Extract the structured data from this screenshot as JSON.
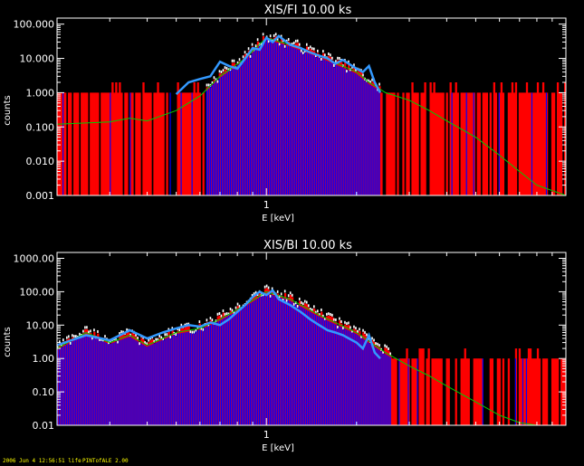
{
  "footer": {
    "timestamp": "2006 Jun  4 12:56:51 life",
    "software": "PINTofALE 2.00"
  },
  "colors": {
    "background": "#000000",
    "axes": "#ffffff",
    "observed": "#ffffff",
    "model_bins": "#0000ff",
    "residual_bins": "#ff0000",
    "smoothed_model": "#3399ff",
    "continuum": "#00cc00"
  },
  "chart_data": [
    {
      "type": "bar",
      "title": "XIS/FI 10.00 ks",
      "xlabel": "E [keV]",
      "ylabel": "counts",
      "xscale": "log",
      "yscale": "log",
      "xlim": [
        0.2,
        10
      ],
      "ylim": [
        0.001,
        150
      ],
      "xticks": [
        {
          "value": 1,
          "label": "1"
        }
      ],
      "yticks": [
        {
          "value": 0.001,
          "label": "0.001"
        },
        {
          "value": 0.01,
          "label": "0.010"
        },
        {
          "value": 0.1,
          "label": "0.100"
        },
        {
          "value": 1,
          "label": "1.000"
        },
        {
          "value": 10,
          "label": "10.000"
        },
        {
          "value": 100,
          "label": "100.000"
        }
      ],
      "grid": false,
      "continuum": {
        "x": [
          0.2,
          0.3,
          0.35,
          0.4,
          0.5,
          0.6,
          0.7,
          0.85,
          1.0,
          1.2,
          1.5,
          2.0,
          2.2,
          2.5,
          3,
          3.5,
          4,
          5,
          6,
          7,
          8,
          10
        ],
        "y": [
          0.12,
          0.14,
          0.18,
          0.15,
          0.3,
          0.8,
          3,
          10,
          40,
          25,
          12,
          4,
          2,
          1.0,
          0.6,
          0.3,
          0.15,
          0.05,
          0.015,
          0.005,
          0.002,
          0.001
        ]
      },
      "smoothed_model": {
        "x": [
          0.5,
          0.55,
          0.6,
          0.65,
          0.7,
          0.75,
          0.8,
          0.85,
          0.9,
          0.95,
          1.0,
          1.05,
          1.1,
          1.2,
          1.3,
          1.4,
          1.5,
          1.6,
          1.7,
          1.8,
          2.0,
          2.1,
          2.2,
          2.3,
          2.4
        ],
        "y": [
          0.9,
          2.0,
          2.5,
          3.0,
          8.0,
          6.0,
          5.0,
          10.0,
          20.0,
          18.0,
          40.0,
          30.0,
          45.0,
          25.0,
          20.0,
          15.0,
          12.0,
          10.0,
          7.0,
          9.0,
          5.0,
          4.0,
          6.0,
          2.0,
          1.0
        ]
      }
    },
    {
      "type": "bar",
      "title": "XIS/BI 10.00 ks",
      "xlabel": "E [keV]",
      "ylabel": "counts",
      "xscale": "log",
      "yscale": "log",
      "xlim": [
        0.2,
        10
      ],
      "ylim": [
        0.01,
        1500
      ],
      "xticks": [
        {
          "value": 1,
          "label": "1"
        }
      ],
      "yticks": [
        {
          "value": 0.01,
          "label": "0.01"
        },
        {
          "value": 0.1,
          "label": "0.10"
        },
        {
          "value": 1,
          "label": "1.00"
        },
        {
          "value": 10,
          "label": "10.00"
        },
        {
          "value": 100,
          "label": "100.00"
        },
        {
          "value": 1000,
          "label": "1000.00"
        }
      ],
      "grid": false,
      "continuum": {
        "x": [
          0.2,
          0.25,
          0.3,
          0.35,
          0.4,
          0.5,
          0.6,
          0.7,
          0.85,
          1.0,
          1.2,
          1.5,
          2.0,
          2.5,
          3,
          3.5,
          4,
          5,
          6,
          7,
          8,
          10
        ],
        "y": [
          2.0,
          6.0,
          3.0,
          5.0,
          2.5,
          6.0,
          8.0,
          15.0,
          40.0,
          100.0,
          60.0,
          20.0,
          6.0,
          1.5,
          0.6,
          0.3,
          0.15,
          0.05,
          0.02,
          0.012,
          0.01,
          0.01
        ]
      },
      "smoothed_model": {
        "x": [
          0.2,
          0.25,
          0.3,
          0.35,
          0.4,
          0.45,
          0.5,
          0.55,
          0.6,
          0.65,
          0.7,
          0.75,
          0.8,
          0.85,
          0.9,
          0.95,
          1.0,
          1.05,
          1.1,
          1.2,
          1.3,
          1.4,
          1.5,
          1.6,
          1.7,
          1.8,
          2.0,
          2.1,
          2.2,
          2.3,
          2.4
        ],
        "y": [
          2.5,
          5.0,
          3.5,
          7.0,
          4.0,
          6.0,
          8.0,
          10.0,
          9.0,
          12.0,
          10.0,
          15.0,
          25.0,
          40.0,
          70.0,
          100.0,
          80.0,
          110.0,
          60.0,
          40.0,
          25.0,
          15.0,
          10.0,
          7.0,
          6.0,
          5.0,
          3.0,
          2.0,
          5.0,
          1.5,
          1.0
        ]
      }
    }
  ]
}
